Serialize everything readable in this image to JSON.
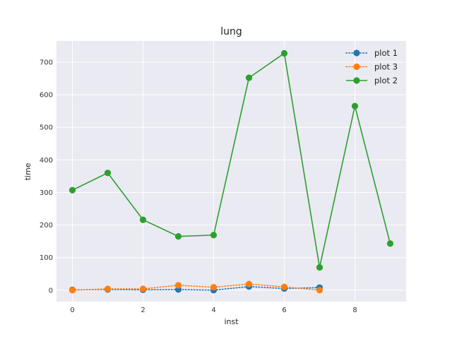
{
  "chart_data": {
    "type": "line",
    "title": "lung",
    "xlabel": "inst",
    "ylabel": "time",
    "xlim": [
      -0.45,
      9.45
    ],
    "ylim": [
      -35,
      765
    ],
    "xticks": [
      0,
      2,
      4,
      6,
      8
    ],
    "yticks": [
      0,
      100,
      200,
      300,
      400,
      500,
      600,
      700
    ],
    "grid": true,
    "legend_position": "top-right",
    "series": [
      {
        "name": "plot 1",
        "color": "#1f77b4",
        "line_style": "dotted",
        "marker": "circle",
        "x": [
          0,
          1,
          2,
          3,
          4,
          5,
          6,
          7
        ],
        "y": [
          1,
          2,
          1,
          2,
          0,
          11,
          5,
          8
        ]
      },
      {
        "name": "plot 3",
        "color": "#ff7f0e",
        "line_style": "dotted",
        "marker": "circle",
        "x": [
          0,
          1,
          2,
          3,
          4,
          5,
          6,
          7
        ],
        "y": [
          0,
          4,
          4,
          15,
          9,
          19,
          10,
          0
        ]
      },
      {
        "name": "plot 2",
        "color": "#2ca02c",
        "line_style": "solid",
        "marker": "circle",
        "x": [
          0,
          1,
          2,
          3,
          4,
          5,
          6,
          7,
          8,
          9
        ],
        "y": [
          307,
          360,
          216,
          165,
          169,
          652,
          727,
          70,
          565,
          143
        ]
      }
    ]
  }
}
